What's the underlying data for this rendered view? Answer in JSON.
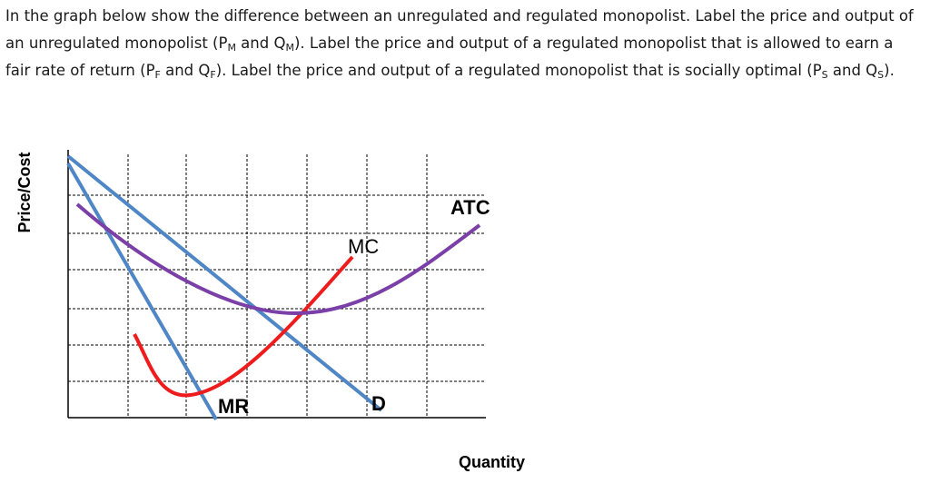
{
  "question": {
    "segments": [
      {
        "text": "In the graph below show the difference between an unregulated and regulated monopolist. Label the price and output of an unregulated monopolist (P"
      },
      {
        "sub": "M"
      },
      {
        "text": " and Q"
      },
      {
        "sub": "M"
      },
      {
        "text": "). Label the price and output of a regulated monopolist that is allowed to earn a fair rate of return (P"
      },
      {
        "sub": "F"
      },
      {
        "text": " and Q"
      },
      {
        "sub": "F"
      },
      {
        "text": "). Label the price and output of a regulated monopolist that is socially optimal (P"
      },
      {
        "sub": "S"
      },
      {
        "text": " and Q"
      },
      {
        "sub": "S"
      },
      {
        "text": ")."
      }
    ]
  },
  "graph": {
    "y_axis_label": "Price/Cost",
    "x_axis_label": "Quantity",
    "curves": {
      "atc": "ATC",
      "mc": "MC",
      "mr": "MR",
      "demand": "D"
    }
  }
}
